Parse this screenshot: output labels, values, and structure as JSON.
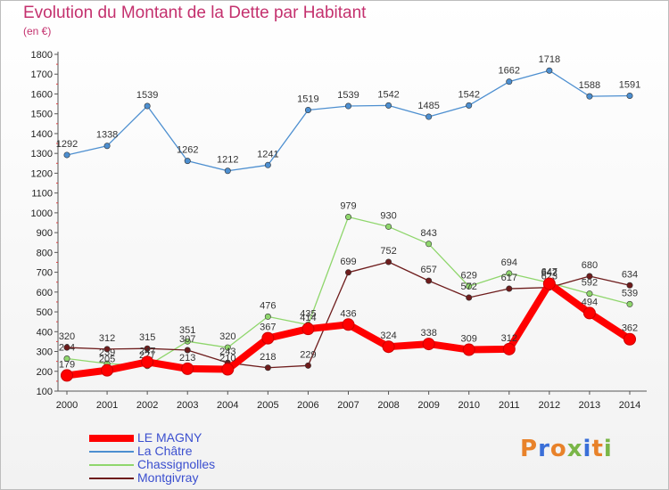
{
  "chart_data": {
    "type": "line",
    "title": "Evolution du Montant de la Dette par Habitant",
    "subtitle": "(en €)",
    "xlabel": "",
    "ylabel": "",
    "categories": [
      "2000",
      "2001",
      "2002",
      "2003",
      "2004",
      "2005",
      "2006",
      "2007",
      "2008",
      "2009",
      "2010",
      "2011",
      "2012",
      "2013",
      "2014"
    ],
    "ylim": [
      100,
      1800
    ],
    "ytick_step": 100,
    "grid": false,
    "legend_position": "bottom-left",
    "series": [
      {
        "name": "LE MAGNY",
        "color": "#ff0000",
        "values": [
          179,
          205,
          247,
          213,
          210,
          367,
          414,
          436,
          324,
          338,
          309,
          312,
          642,
          494,
          362
        ]
      },
      {
        "name": "La Châtre",
        "color": "#4d8fd0",
        "values": [
          1292,
          1338,
          1539,
          1262,
          1212,
          1241,
          1519,
          1539,
          1542,
          1485,
          1542,
          1662,
          1718,
          1588,
          1591
        ]
      },
      {
        "name": "Chassignolles",
        "color": "#8fd66c",
        "values": [
          264,
          239,
          227,
          351,
          320,
          476,
          435,
          979,
          930,
          843,
          629,
          694,
          647,
          592,
          539
        ]
      },
      {
        "name": "Montgivray",
        "color": "#6e1c1c",
        "values": [
          320,
          312,
          315,
          307,
          243,
          218,
          229,
          699,
          752,
          657,
          572,
          617,
          623,
          680,
          634
        ]
      }
    ]
  },
  "logo": {
    "text": "Proxiti",
    "colors": [
      "#e8822a",
      "#3a6fd8",
      "#e8822a",
      "#7ab648",
      "#3a6fd8",
      "#e8822a",
      "#7ab648"
    ]
  }
}
